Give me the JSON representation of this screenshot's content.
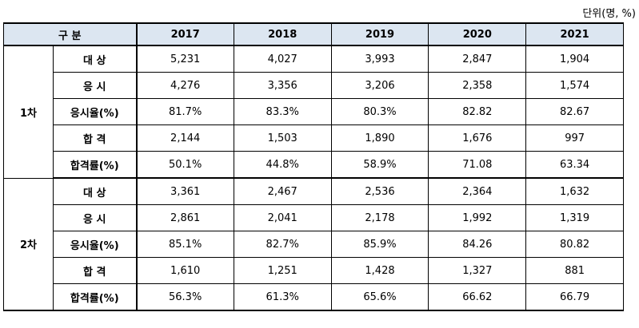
{
  "unit_note": "단위(명, %)",
  "header": {
    "category": "구 분",
    "years": [
      "2017",
      "2018",
      "2019",
      "2020",
      "2021"
    ]
  },
  "groups": [
    {
      "round": "1차",
      "rows": [
        {
          "label": "대 상",
          "values": [
            "5,231",
            "4,027",
            "3,993",
            "2,847",
            "1,904"
          ]
        },
        {
          "label": "응 시",
          "values": [
            "4,276",
            "3,356",
            "3,206",
            "2,358",
            "1,574"
          ]
        },
        {
          "label": "응시율(%)",
          "values": [
            "81.7%",
            "83.3%",
            "80.3%",
            "82.82",
            "82.67"
          ]
        },
        {
          "label": "합 격",
          "values": [
            "2,144",
            "1,503",
            "1,890",
            "1,676",
            "997"
          ]
        },
        {
          "label": "합격률(%)",
          "values": [
            "50.1%",
            "44.8%",
            "58.9%",
            "71.08",
            "63.34"
          ]
        }
      ]
    },
    {
      "round": "2차",
      "rows": [
        {
          "label": "대 상",
          "values": [
            "3,361",
            "2,467",
            "2,536",
            "2,364",
            "1,632"
          ]
        },
        {
          "label": "응 시",
          "values": [
            "2,861",
            "2,041",
            "2,178",
            "1,992",
            "1,319"
          ]
        },
        {
          "label": "응시율(%)",
          "values": [
            "85.1%",
            "82.7%",
            "85.9%",
            "84.26",
            "80.82"
          ]
        },
        {
          "label": "합 격",
          "values": [
            "1,610",
            "1,251",
            "1,428",
            "1,327",
            "881"
          ]
        },
        {
          "label": "합격률(%)",
          "values": [
            "56.3%",
            "61.3%",
            "65.6%",
            "66.62",
            "66.79"
          ]
        }
      ]
    }
  ],
  "colors": {
    "header_bg": "#dce6f1"
  }
}
